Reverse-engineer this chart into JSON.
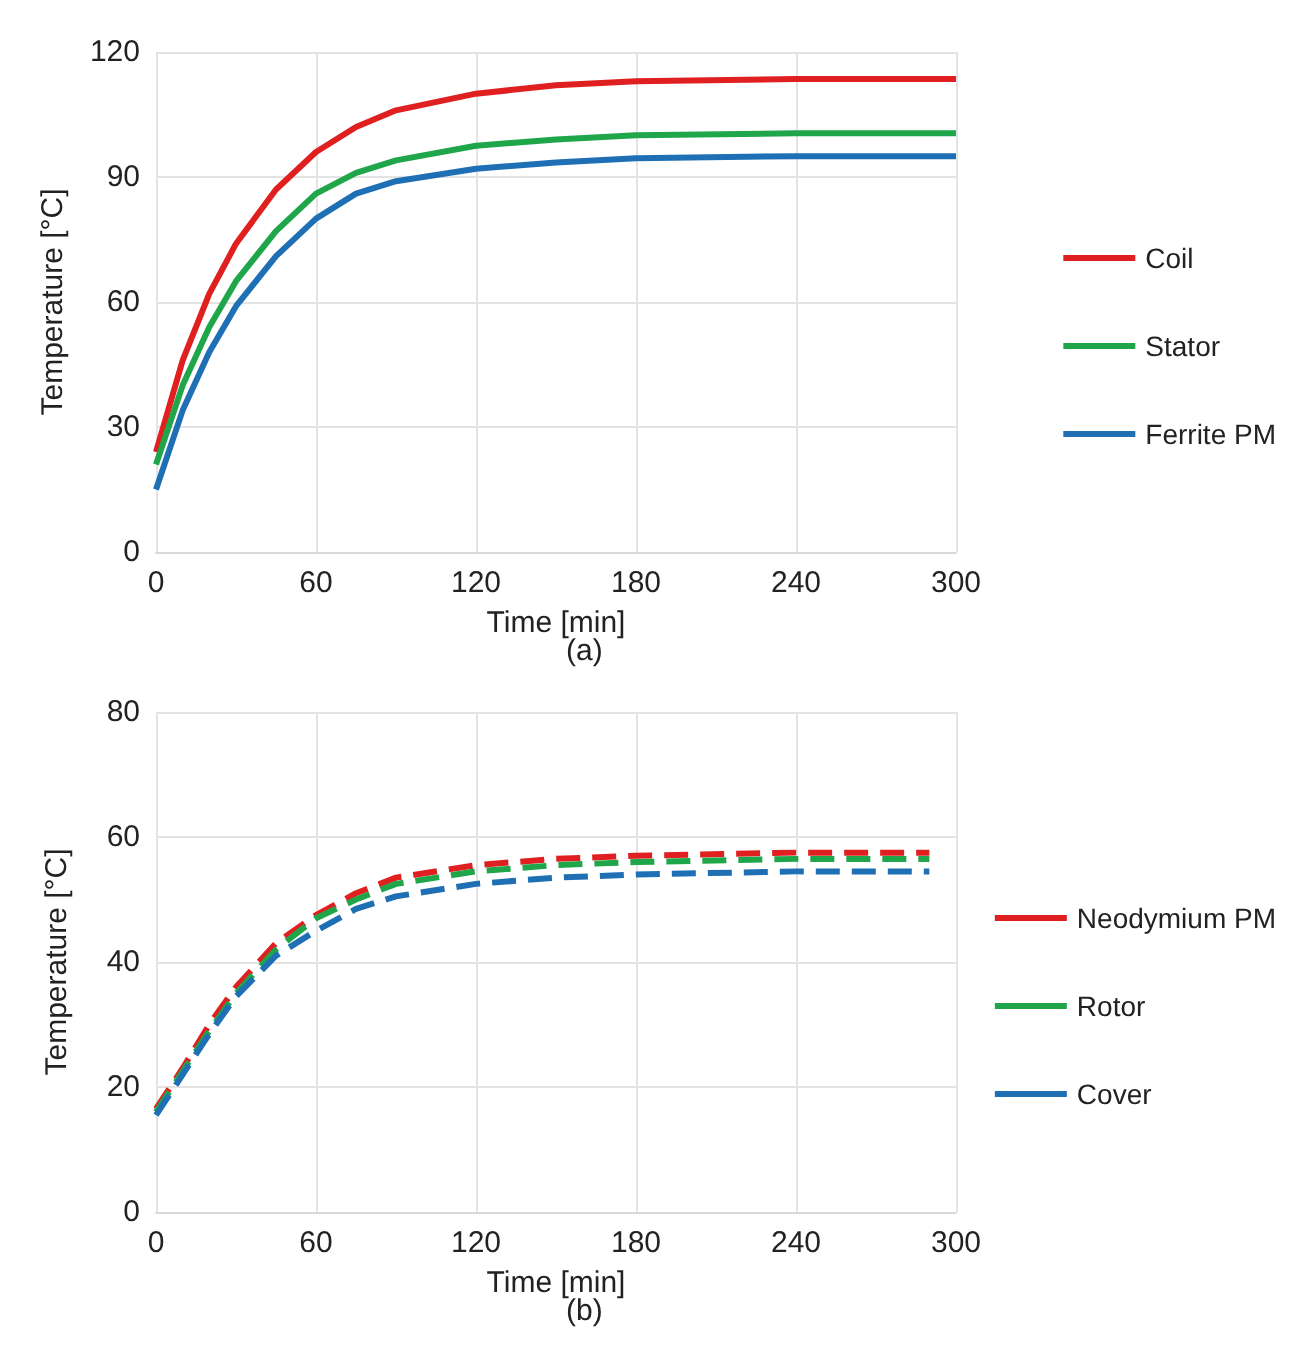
{
  "chart_data": [
    {
      "type": "line",
      "xlabel": "Time [min]",
      "ylabel": "Temperature [°C]",
      "annotations": [
        "(a)"
      ],
      "x": [
        0,
        10,
        20,
        30,
        45,
        60,
        75,
        90,
        120,
        150,
        180,
        240,
        300
      ],
      "xlim": [
        0,
        300
      ],
      "xticks": [
        0,
        60,
        120,
        180,
        240,
        300
      ],
      "ylim": [
        0,
        120
      ],
      "yticks": [
        0,
        30,
        60,
        90,
        120
      ],
      "grid": true,
      "legend": "right",
      "marker": "none",
      "line_style": "solid",
      "series": [
        {
          "name": "Coil",
          "color": "#e02020",
          "values": [
            24,
            46,
            62,
            74,
            87,
            96,
            102,
            106,
            110,
            112,
            113,
            113.5,
            113.5
          ]
        },
        {
          "name": "Stator",
          "color": "#1fa64a",
          "values": [
            21,
            40,
            54,
            65,
            77,
            86,
            91,
            94,
            97.5,
            99,
            100,
            100.5,
            100.5
          ]
        },
        {
          "name": "Ferrite PM",
          "color": "#1f6fb4",
          "values": [
            15,
            34,
            48,
            59,
            71,
            80,
            86,
            89,
            92,
            93.5,
            94.5,
            95,
            95
          ]
        }
      ]
    },
    {
      "type": "line",
      "xlabel": "Time [min]",
      "ylabel": "Temperature [°C]",
      "annotations": [
        "(b)"
      ],
      "x": [
        0,
        10,
        20,
        30,
        45,
        60,
        75,
        90,
        120,
        150,
        180,
        240,
        290
      ],
      "xlim": [
        0,
        300
      ],
      "xticks": [
        0,
        60,
        120,
        180,
        240,
        300
      ],
      "ylim": [
        0,
        80
      ],
      "yticks": [
        0,
        20,
        40,
        60,
        80
      ],
      "grid": true,
      "legend": "right",
      "marker": "none",
      "line_style": "dashed",
      "series": [
        {
          "name": "Neodymium PM",
          "color": "#e02020",
          "values": [
            16.5,
            23,
            30,
            36,
            43,
            47.5,
            51,
            53.5,
            55.5,
            56.5,
            57,
            57.5,
            57.5
          ]
        },
        {
          "name": "Rotor",
          "color": "#1fa64a",
          "values": [
            16,
            22.5,
            29,
            35,
            42,
            47,
            50,
            52.5,
            54.5,
            55.5,
            56,
            56.5,
            56.5
          ]
        },
        {
          "name": "Cover",
          "color": "#1f6fb4",
          "values": [
            15.5,
            22,
            28.5,
            34.5,
            41,
            45,
            48.5,
            50.5,
            52.5,
            53.5,
            54,
            54.5,
            54.5
          ]
        }
      ]
    }
  ]
}
